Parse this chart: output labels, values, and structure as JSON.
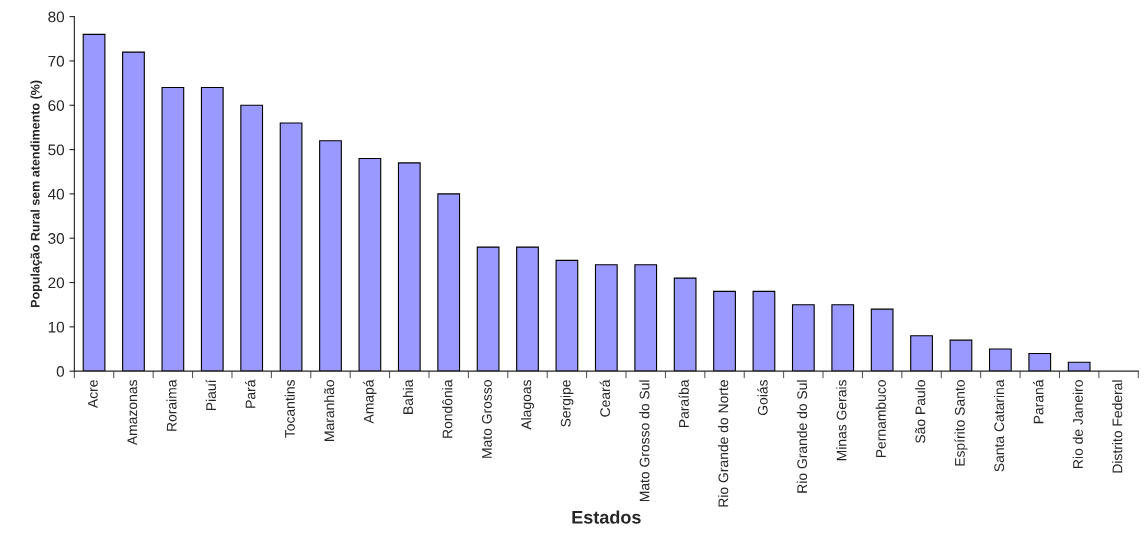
{
  "chart_data": {
    "type": "bar",
    "xlabel": "Estados",
    "ylabel": "População Rural sem atendimento (%)",
    "categories": [
      "Acre",
      "Amazonas",
      "Roraima",
      "Piauí",
      "Pará",
      "Tocantins",
      "Maranhão",
      "Amapá",
      "Bahia",
      "Rondônia",
      "Mato Grosso",
      "Alagoas",
      "Sergipe",
      "Ceará",
      "Mato Grosso do Sul",
      "Paraíba",
      "Rio Grande do Norte",
      "Goiás",
      "Rio Grande do Sul",
      "Minas Gerais",
      "Pernambuco",
      "São Paulo",
      "Espírito Santo",
      "Santa Catarina",
      "Paraná",
      "Rio de Janeiro",
      "Distrito Federal"
    ],
    "values": [
      76,
      72,
      64,
      64,
      60,
      56,
      52,
      48,
      47,
      40,
      28,
      28,
      25,
      24,
      24,
      21,
      18,
      18,
      15,
      15,
      14,
      8,
      7,
      5,
      4,
      2,
      0
    ],
    "color": "#9999ff",
    "ylim": [
      0,
      80
    ],
    "yticks": [
      0,
      10,
      20,
      30,
      40,
      50,
      60,
      70,
      80
    ],
    "grid": false
  }
}
